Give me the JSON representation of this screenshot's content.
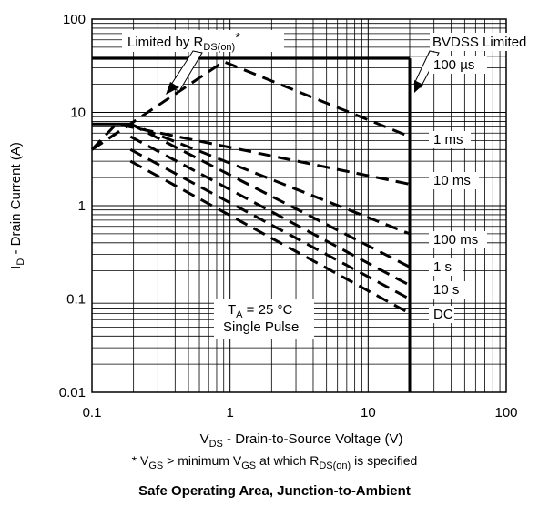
{
  "chart_data": {
    "type": "line",
    "title": "Safe Operating Area, Junction-to-Ambient",
    "xlabel": {
      "pre": "V",
      "sub": "DS",
      "post": " - Drain-to-Source Voltage (V)"
    },
    "ylabel": {
      "pre": "I",
      "sub": "D",
      "post": " - Drain Current (A)"
    },
    "xscale": "log",
    "yscale": "log",
    "xlim": [
      0.1,
      100
    ],
    "ylim": [
      0.01,
      100
    ],
    "grid": true,
    "x_ticks": [
      "0.1",
      "1",
      "10",
      "100"
    ],
    "y_ticks": [
      "0.01",
      "0.1",
      "1",
      "10",
      "100"
    ],
    "series": [
      {
        "name": "100 µs",
        "style": "dashed",
        "x": [
          0.1,
          0.9,
          20
        ],
        "y": [
          4.0,
          35,
          5.5
        ]
      },
      {
        "name": "1 ms",
        "style": "dashed",
        "x": [
          0.1,
          0.15,
          20
        ],
        "y": [
          4.0,
          7.5,
          1.7
        ]
      },
      {
        "name": "10 ms",
        "style": "dashed",
        "x": [
          0.1,
          0.19,
          20
        ],
        "y": [
          4.0,
          7.5,
          0.5
        ]
      },
      {
        "name": "100 ms",
        "style": "dashed",
        "x": [
          0.19,
          20
        ],
        "y": [
          7.5,
          0.22
        ]
      },
      {
        "name": "1 s",
        "style": "dashed",
        "x": [
          0.19,
          20
        ],
        "y": [
          5.5,
          0.14
        ]
      },
      {
        "name": "10 s",
        "style": "dashed",
        "x": [
          0.19,
          20
        ],
        "y": [
          4.0,
          0.1
        ]
      },
      {
        "name": "DC",
        "style": "dashed",
        "x": [
          0.19,
          20
        ],
        "y": [
          3.0,
          0.07
        ]
      },
      {
        "name": "Limited by RDS(on)",
        "style": "solid",
        "x": [
          0.1,
          0.19
        ],
        "y": [
          7.5,
          7.5
        ]
      },
      {
        "name": "Current limit",
        "style": "solid",
        "x": [
          0.1,
          20
        ],
        "y": [
          38,
          38
        ]
      },
      {
        "name": "BVDSS Limited",
        "style": "solid",
        "x": [
          20,
          20
        ],
        "y": [
          0.01,
          38
        ]
      }
    ],
    "annotations": {
      "limited_rds": {
        "pre": "Limited by R",
        "sub": "DS(on)",
        "post": "*"
      },
      "bvdss": "BVDSS Limited",
      "ta": {
        "pre": "T",
        "sub": "A",
        "post": " = 25 °C"
      },
      "pulse": "Single Pulse",
      "labels": [
        "100 µs",
        "1 ms",
        "10 ms",
        "100 ms",
        "1 s",
        "10 s",
        "DC"
      ]
    },
    "footnote": {
      "p1": "* V",
      "s1": "GS",
      "p2": " > minimum V",
      "s2": "GS",
      "p3": " at which R",
      "s3": "DS(on)",
      "p4": " is specified"
    }
  }
}
